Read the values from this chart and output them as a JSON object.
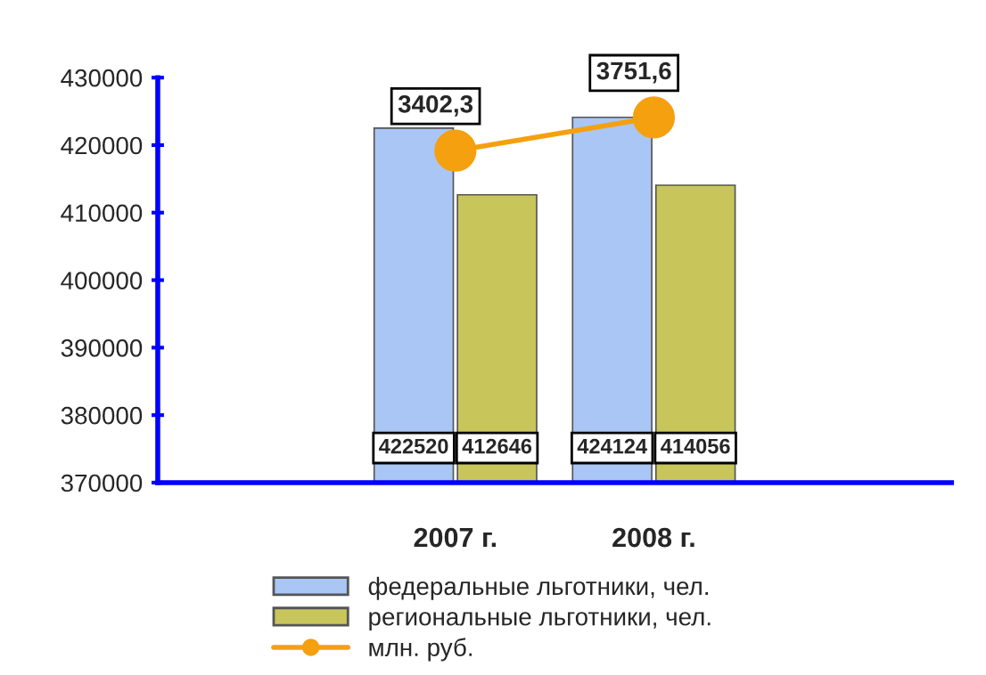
{
  "chart_data": {
    "type": "bar",
    "categories": [
      null,
      "2007 г.",
      "2008 г.",
      null
    ],
    "series": [
      {
        "name": "федеральные льготники, чел.",
        "color": "#a9c6f5",
        "values": [
          null,
          422520,
          424124,
          null
        ]
      },
      {
        "name": "региональные льготники, чел.",
        "color": "#c8c65a",
        "values": [
          null,
          412646,
          414056,
          null
        ]
      },
      {
        "name": "млн. руб.",
        "type": "line",
        "axis": "y2",
        "color": "#f5a00f",
        "marker": "circle",
        "values": [
          null,
          3402.3,
          3751.6,
          null
        ],
        "value_labels": [
          null,
          "3402,3",
          "3751,6",
          null
        ]
      }
    ],
    "ylim": [
      370000,
      430000
    ],
    "yticks": [
      370000,
      380000,
      390000,
      400000,
      410000,
      420000,
      430000
    ],
    "data_labels": true,
    "grid": false,
    "legend": "bottom"
  }
}
